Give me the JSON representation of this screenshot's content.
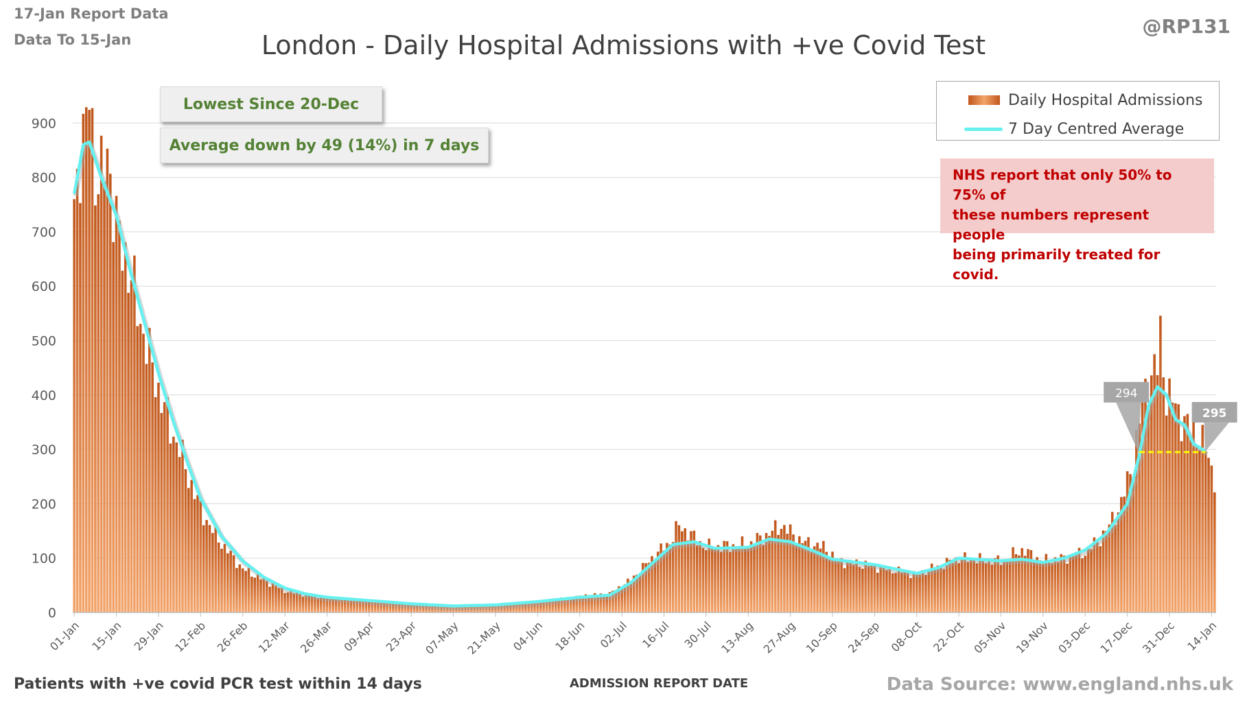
{
  "header": {
    "report_date": "17-Jan Report Data",
    "data_to": "Data To 15-Jan",
    "handle": "@RP131",
    "title": "London - Daily Hospital Admissions with +ve Covid Test"
  },
  "callouts": {
    "lowest": "Lowest Since 20-Dec",
    "average_change": "Average down by 49 (14%) in 7 days"
  },
  "legend": {
    "bars": "Daily Hospital Admissions",
    "line": "7 Day Centred Average"
  },
  "nhs_note": {
    "line1": "NHS report that only 50% to 75% of",
    "line2": "these numbers represent people",
    "line3": "being primarily treated for covid."
  },
  "footer": {
    "left_note": "Patients with +ve covid PCR test within 14 days",
    "x_axis_title": "ADMISSION REPORT DATE",
    "source": "Data Source: www.england.nhs.uk"
  },
  "colors": {
    "bar_dark": "#c0571c",
    "bar_light": "#f3a46a",
    "avg_line": "#66f0f0",
    "reference_line": "#ffff00",
    "callout_text": "#548235",
    "nhs_text": "#c00000",
    "nhs_bg": "#f4cccc"
  },
  "chart_data": {
    "type": "bar",
    "title": "London - Daily Hospital Admissions with +ve Covid Test",
    "xlabel": "ADMISSION REPORT DATE",
    "ylabel": "",
    "ylim": [
      0,
      1000
    ],
    "y_ticks": [
      0,
      100,
      200,
      300,
      400,
      500,
      600,
      700,
      800,
      900
    ],
    "grid": "horizontal",
    "legend_position": "top-right",
    "x_tick_labels": [
      "01-Jan",
      "15-Jan",
      "29-Jan",
      "12-Feb",
      "26-Feb",
      "12-Mar",
      "26-Mar",
      "09-Apr",
      "23-Apr",
      "07-May",
      "21-May",
      "04-Jun",
      "18-Jun",
      "02-Jul",
      "16-Jul",
      "30-Jul",
      "13-Aug",
      "27-Aug",
      "10-Sep",
      "24-Sep",
      "08-Oct",
      "22-Oct",
      "05-Nov",
      "19-Nov",
      "03-Dec",
      "17-Dec",
      "31-Dec",
      "14-Jan"
    ],
    "daily_admissions_keypoints": [
      [
        "01-Jan",
        760
      ],
      [
        "03-Jan",
        850
      ],
      [
        "05-Jan",
        870
      ],
      [
        "06-Jan",
        975
      ],
      [
        "08-Jan",
        810
      ],
      [
        "10-Jan",
        780
      ],
      [
        "12-Jan",
        860
      ],
      [
        "15-Jan",
        700
      ],
      [
        "18-Jan",
        660
      ],
      [
        "22-Jan",
        560
      ],
      [
        "26-Jan",
        470
      ],
      [
        "29-Jan",
        410
      ],
      [
        "02-Feb",
        340
      ],
      [
        "05-Feb",
        300
      ],
      [
        "08-Feb",
        250
      ],
      [
        "12-Feb",
        190
      ],
      [
        "16-Feb",
        150
      ],
      [
        "20-Feb",
        120
      ],
      [
        "26-Feb",
        80
      ],
      [
        "05-Mar",
        60
      ],
      [
        "12-Mar",
        40
      ],
      [
        "19-Mar",
        32
      ],
      [
        "26-Mar",
        28
      ],
      [
        "09-Apr",
        22
      ],
      [
        "23-Apr",
        16
      ],
      [
        "07-May",
        12
      ],
      [
        "21-May",
        14
      ],
      [
        "04-Jun",
        20
      ],
      [
        "18-Jun",
        30
      ],
      [
        "28-Jun",
        35
      ],
      [
        "05-Jul",
        60
      ],
      [
        "12-Jul",
        100
      ],
      [
        "18-Jul",
        130
      ],
      [
        "21-Jul",
        160
      ],
      [
        "30-Jul",
        120
      ],
      [
        "13-Aug",
        125
      ],
      [
        "20-Aug",
        145
      ],
      [
        "24-Aug",
        160
      ],
      [
        "31-Aug",
        130
      ],
      [
        "07-Sep",
        120
      ],
      [
        "12-Sep",
        95
      ],
      [
        "24-Sep",
        85
      ],
      [
        "08-Oct",
        70
      ],
      [
        "15-Oct",
        85
      ],
      [
        "22-Oct",
        100
      ],
      [
        "05-Nov",
        95
      ],
      [
        "12-Nov",
        115
      ],
      [
        "19-Nov",
        95
      ],
      [
        "26-Nov",
        100
      ],
      [
        "03-Dec",
        110
      ],
      [
        "10-Dec",
        150
      ],
      [
        "15-Dec",
        200
      ],
      [
        "19-Dec",
        280
      ],
      [
        "22-Dec",
        380
      ],
      [
        "24-Dec",
        430
      ],
      [
        "27-Dec",
        450
      ],
      [
        "28-Dec",
        510
      ],
      [
        "30-Dec",
        400
      ],
      [
        "02-Jan",
        380
      ],
      [
        "06-Jan",
        340
      ],
      [
        "09-Jan",
        330
      ],
      [
        "12-Jan",
        300
      ],
      [
        "15-Jan",
        250
      ]
    ],
    "centred_average_keypoints": [
      [
        "01-Jan",
        770
      ],
      [
        "04-Jan",
        860
      ],
      [
        "06-Jan",
        865
      ],
      [
        "10-Jan",
        800
      ],
      [
        "15-Jan",
        730
      ],
      [
        "20-Jan",
        620
      ],
      [
        "25-Jan",
        520
      ],
      [
        "29-Jan",
        440
      ],
      [
        "03-Feb",
        350
      ],
      [
        "08-Feb",
        270
      ],
      [
        "12-Feb",
        210
      ],
      [
        "19-Feb",
        140
      ],
      [
        "26-Feb",
        95
      ],
      [
        "05-Mar",
        65
      ],
      [
        "12-Mar",
        45
      ],
      [
        "19-Mar",
        34
      ],
      [
        "26-Mar",
        28
      ],
      [
        "09-Apr",
        22
      ],
      [
        "23-Apr",
        16
      ],
      [
        "07-May",
        12
      ],
      [
        "21-May",
        14
      ],
      [
        "04-Jun",
        20
      ],
      [
        "18-Jun",
        28
      ],
      [
        "28-Jun",
        32
      ],
      [
        "05-Jul",
        55
      ],
      [
        "12-Jul",
        90
      ],
      [
        "19-Jul",
        125
      ],
      [
        "26-Jul",
        130
      ],
      [
        "02-Aug",
        118
      ],
      [
        "13-Aug",
        120
      ],
      [
        "20-Aug",
        135
      ],
      [
        "27-Aug",
        130
      ],
      [
        "03-Sep",
        115
      ],
      [
        "10-Sep",
        98
      ],
      [
        "24-Sep",
        88
      ],
      [
        "08-Oct",
        72
      ],
      [
        "15-Oct",
        82
      ],
      [
        "22-Oct",
        100
      ],
      [
        "05-Nov",
        95
      ],
      [
        "12-Nov",
        98
      ],
      [
        "19-Nov",
        92
      ],
      [
        "26-Nov",
        100
      ],
      [
        "03-Dec",
        115
      ],
      [
        "10-Dec",
        145
      ],
      [
        "17-Dec",
        200
      ],
      [
        "21-Dec",
        290
      ],
      [
        "24-Dec",
        380
      ],
      [
        "27-Dec",
        415
      ],
      [
        "30-Dec",
        400
      ],
      [
        "02-Jan",
        355
      ],
      [
        "05-Jan",
        345
      ],
      [
        "08-Jan",
        310
      ],
      [
        "11-Jan",
        300
      ],
      [
        "12-Jan",
        295
      ]
    ],
    "annotations": [
      {
        "label": "294",
        "value": 294,
        "date": "21-Dec"
      },
      {
        "label": "295",
        "value": 295,
        "date": "12-Jan"
      }
    ],
    "reference_line": {
      "value": 295,
      "from": "21-Dec",
      "to": "12-Jan"
    }
  }
}
